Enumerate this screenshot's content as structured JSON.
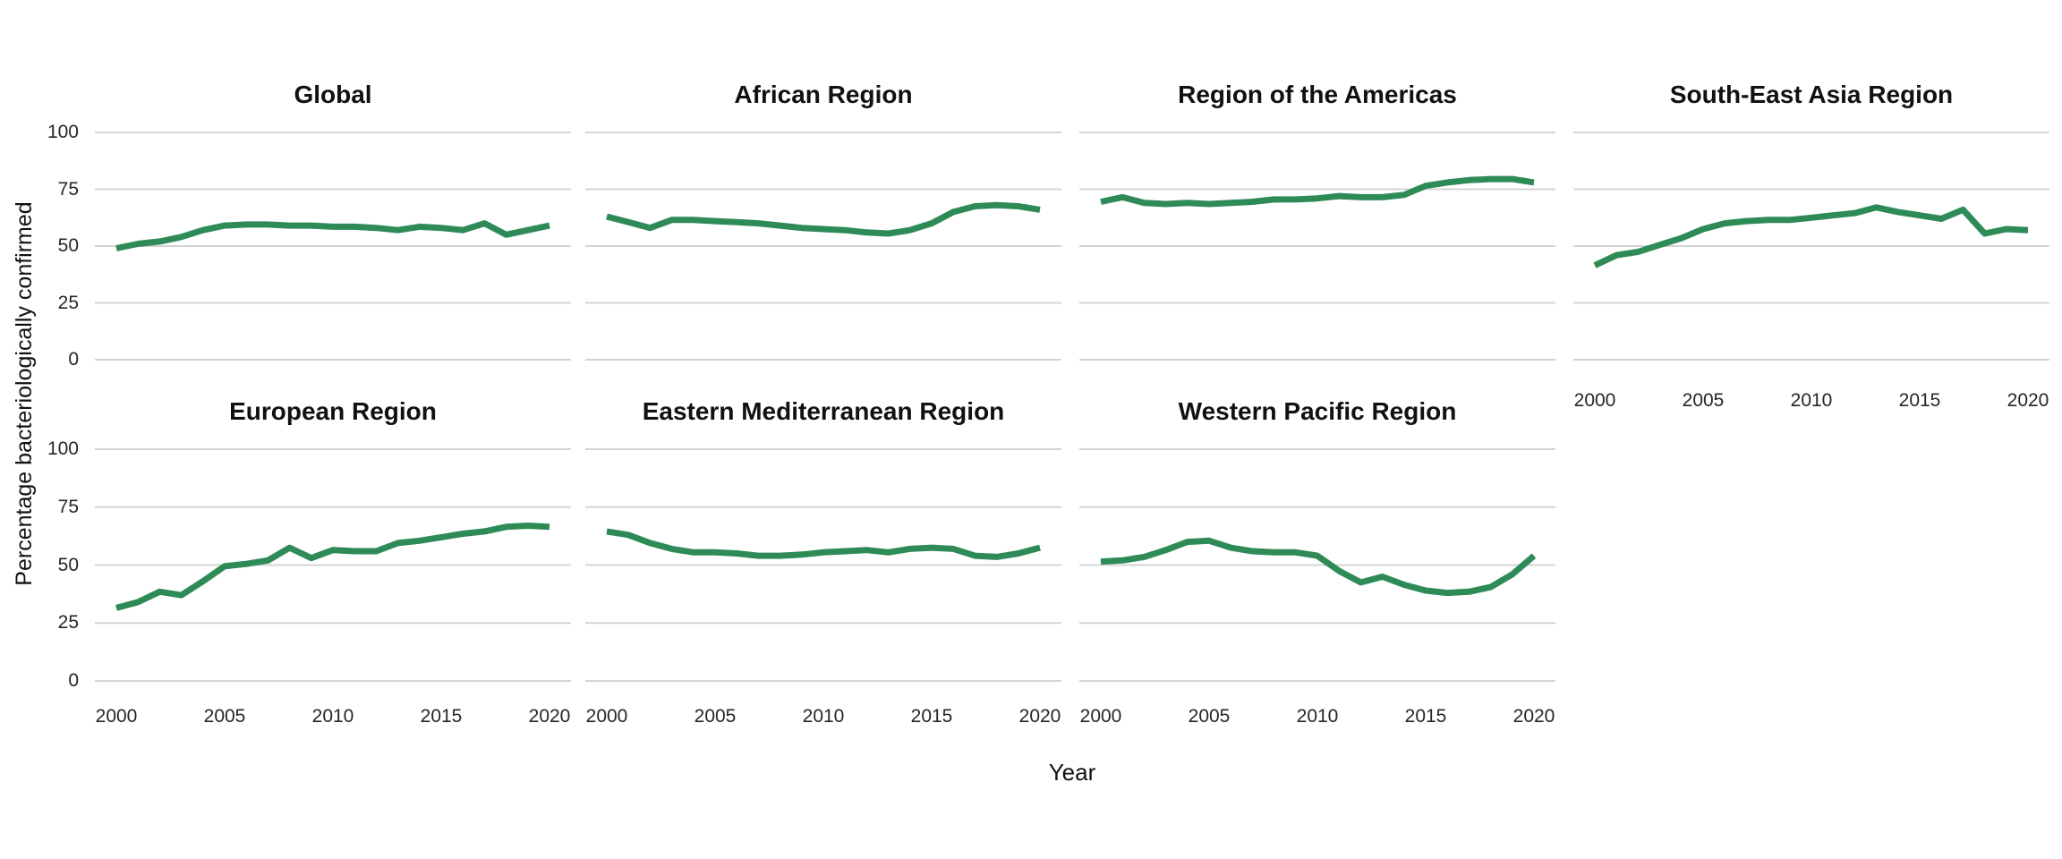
{
  "figure": {
    "y_axis_label": "Percentage bacteriologically confirmed",
    "x_axis_label": "Year",
    "colors": {
      "line": "#2e8b57",
      "gridline": "#d4d4d4",
      "tick_label": "#262626",
      "title": "#111111",
      "background": "#ffffff"
    }
  },
  "chart_data": {
    "type": "line",
    "layout": "facet-grid-2-rows-4-cols",
    "title": "",
    "xlabel": "Year",
    "ylabel": "Percentage bacteriologically confirmed",
    "x_ticks": [
      2000,
      2005,
      2010,
      2015,
      2020
    ],
    "y_ticks": [
      100,
      75,
      50,
      25,
      0
    ],
    "xlim": [
      2000,
      2020
    ],
    "ylim": [
      0,
      100
    ],
    "grid": "horizontal-only",
    "legend": "none",
    "x": [
      2000,
      2001,
      2002,
      2003,
      2004,
      2005,
      2006,
      2007,
      2008,
      2009,
      2010,
      2011,
      2012,
      2013,
      2014,
      2015,
      2016,
      2017,
      2018,
      2019,
      2020
    ],
    "series": [
      {
        "name": "Global",
        "row": 0,
        "col": 0,
        "show_y_labels": true,
        "show_x_labels": false,
        "values": [
          49,
          51,
          52,
          54,
          57,
          59,
          59.5,
          59.5,
          59,
          59,
          58.5,
          58.5,
          58,
          57,
          58.5,
          58,
          57,
          60,
          55,
          57,
          59
        ]
      },
      {
        "name": "African Region",
        "row": 0,
        "col": 1,
        "show_y_labels": false,
        "show_x_labels": false,
        "values": [
          63,
          60.5,
          58,
          61.5,
          61.5,
          61,
          60.5,
          60,
          59,
          58,
          57.5,
          57,
          56,
          55.5,
          57,
          60,
          65,
          67.5,
          68,
          67.5,
          66
        ]
      },
      {
        "name": "Region of the Americas",
        "row": 0,
        "col": 2,
        "show_y_labels": false,
        "show_x_labels": false,
        "values": [
          69.5,
          71.5,
          69,
          68.5,
          69,
          68.5,
          69,
          69.5,
          70.5,
          70.5,
          71,
          72,
          71.5,
          71.5,
          72.5,
          76.5,
          78,
          79,
          79.5,
          79.5,
          78
        ]
      },
      {
        "name": "South-East Asia Region",
        "row": 0,
        "col": 3,
        "show_y_labels": false,
        "show_x_labels": true,
        "values": [
          41.5,
          46,
          47.5,
          50.5,
          53.5,
          57.5,
          60,
          61,
          61.5,
          61.5,
          62.5,
          63.5,
          64.5,
          67,
          65,
          63.5,
          62,
          66,
          55.5,
          57.5,
          57
        ]
      },
      {
        "name": "European Region",
        "row": 1,
        "col": 0,
        "show_y_labels": true,
        "show_x_labels": true,
        "values": [
          31.5,
          34,
          38.5,
          37,
          43,
          49.5,
          50.5,
          52,
          57.5,
          53,
          56.5,
          56,
          56,
          59.5,
          60.5,
          62,
          63.5,
          64.5,
          66.5,
          67,
          66.5
        ]
      },
      {
        "name": "Eastern Mediterranean Region",
        "row": 1,
        "col": 1,
        "show_y_labels": false,
        "show_x_labels": true,
        "values": [
          64.5,
          63,
          59.5,
          57,
          55.5,
          55.5,
          55,
          54,
          54,
          54.5,
          55.5,
          56,
          56.5,
          55.5,
          57,
          57.5,
          57,
          54,
          53.5,
          55,
          57.5
        ]
      },
      {
        "name": "Western Pacific Region",
        "row": 1,
        "col": 2,
        "show_y_labels": false,
        "show_x_labels": true,
        "values": [
          51.5,
          52,
          53.5,
          56.5,
          60,
          60.5,
          57.5,
          56,
          55.5,
          55.5,
          54,
          47.5,
          42.5,
          45,
          41.5,
          39,
          38,
          38.5,
          40.5,
          46,
          54
        ]
      }
    ]
  }
}
